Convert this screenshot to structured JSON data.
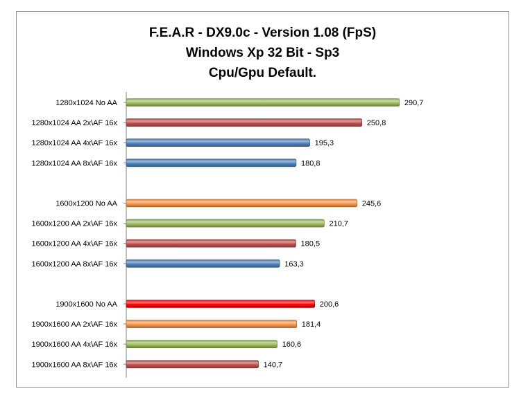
{
  "chart_data": {
    "type": "bar",
    "orientation": "horizontal",
    "title_lines": [
      "F.E.A.R - DX9.0c - Version 1.08 (FpS)",
      "Windows Xp 32 Bit - Sp3",
      "Cpu/Gpu Default."
    ],
    "xlim": [
      0,
      310
    ],
    "grid": false,
    "legend": "none",
    "bars": [
      {
        "label": "1280x1024 No AA",
        "value": 290.7,
        "display": "290,7",
        "color": "#9bbb59"
      },
      {
        "label": "1280x1024 AA 2x\\AF 16x",
        "value": 250.8,
        "display": "250,8",
        "color": "#c0504d"
      },
      {
        "label": "1280x1024 AA 4x\\AF 16x",
        "value": 195.3,
        "display": "195,3",
        "color": "#4f81bd"
      },
      {
        "label": "1280x1024 AA 8x\\AF 16x",
        "value": 180.8,
        "display": "180,8",
        "color": "#4f81bd"
      },
      {
        "label": "",
        "value": null,
        "display": "",
        "color": ""
      },
      {
        "label": "1600x1200 No AA",
        "value": 245.6,
        "display": "245,6",
        "color": "#f79646"
      },
      {
        "label": "1600x1200 AA 2x\\AF 16x",
        "value": 210.7,
        "display": "210,7",
        "color": "#9bbb59"
      },
      {
        "label": "1600x1200 AA 4x\\AF 16x",
        "value": 180.5,
        "display": "180,5",
        "color": "#c0504d"
      },
      {
        "label": "1600x1200 AA 8x\\AF 16x",
        "value": 163.3,
        "display": "163,3",
        "color": "#4f81bd"
      },
      {
        "label": "",
        "value": null,
        "display": "",
        "color": ""
      },
      {
        "label": "1900x1600 No AA",
        "value": 200.6,
        "display": "200,6",
        "color": "#ff0000"
      },
      {
        "label": "1900x1600 AA 2x\\AF 16x",
        "value": 181.4,
        "display": "181,4",
        "color": "#f79646"
      },
      {
        "label": "1900x1600 AA 4x\\AF 16x",
        "value": 160.6,
        "display": "160,6",
        "color": "#9bbb59"
      },
      {
        "label": "1900x1600 AA 8x\\AF 16x",
        "value": 140.7,
        "display": "140,7",
        "color": "#c0504d"
      }
    ]
  }
}
